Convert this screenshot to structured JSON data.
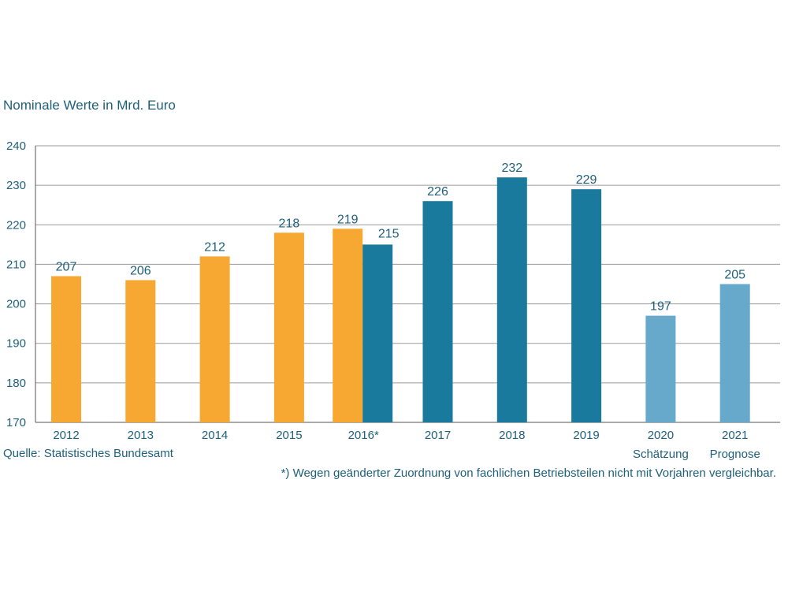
{
  "chart_data": {
    "type": "bar",
    "unit_label": "Nominale Werte in Mrd. Euro",
    "ylim": [
      170,
      240
    ],
    "yticks": [
      170,
      180,
      190,
      200,
      210,
      220,
      230,
      240
    ],
    "grid": true,
    "categories": [
      {
        "label": "2012",
        "sublabel": ""
      },
      {
        "label": "2013",
        "sublabel": ""
      },
      {
        "label": "2014",
        "sublabel": ""
      },
      {
        "label": "2015",
        "sublabel": ""
      },
      {
        "label": "2016*",
        "sublabel": ""
      },
      {
        "label": "2017",
        "sublabel": ""
      },
      {
        "label": "2018",
        "sublabel": ""
      },
      {
        "label": "2019",
        "sublabel": ""
      },
      {
        "label": "2020",
        "sublabel": "Schätzung"
      },
      {
        "label": "2021",
        "sublabel": "Prognose"
      }
    ],
    "bars": [
      {
        "category": 0,
        "value": 207,
        "label": "207",
        "color": "#f7a833",
        "slot": "center"
      },
      {
        "category": 1,
        "value": 206,
        "label": "206",
        "color": "#f7a833",
        "slot": "center"
      },
      {
        "category": 2,
        "value": 212,
        "label": "212",
        "color": "#f7a833",
        "slot": "center"
      },
      {
        "category": 3,
        "value": 218,
        "label": "218",
        "color": "#f7a833",
        "slot": "center"
      },
      {
        "category": 4,
        "value": 219,
        "label": "219",
        "color": "#f7a833",
        "slot": "left"
      },
      {
        "category": 4,
        "value": 215,
        "label": "215",
        "color": "#1a7a9e",
        "slot": "right"
      },
      {
        "category": 5,
        "value": 226,
        "label": "226",
        "color": "#1a7a9e",
        "slot": "center"
      },
      {
        "category": 6,
        "value": 232,
        "label": "232",
        "color": "#1a7a9e",
        "slot": "center"
      },
      {
        "category": 7,
        "value": 229,
        "label": "229",
        "color": "#1a7a9e",
        "slot": "center"
      },
      {
        "category": 8,
        "value": 197,
        "label": "197",
        "color": "#67a9ca",
        "slot": "center"
      },
      {
        "category": 9,
        "value": 205,
        "label": "205",
        "color": "#67a9ca",
        "slot": "center"
      }
    ],
    "source": "Quelle: Statistisches Bundesamt",
    "footnote": "*) Wegen geänderter Zuordnung von fachlichen Betriebsteilen nicht mit Vorjahren vergleichbar."
  }
}
